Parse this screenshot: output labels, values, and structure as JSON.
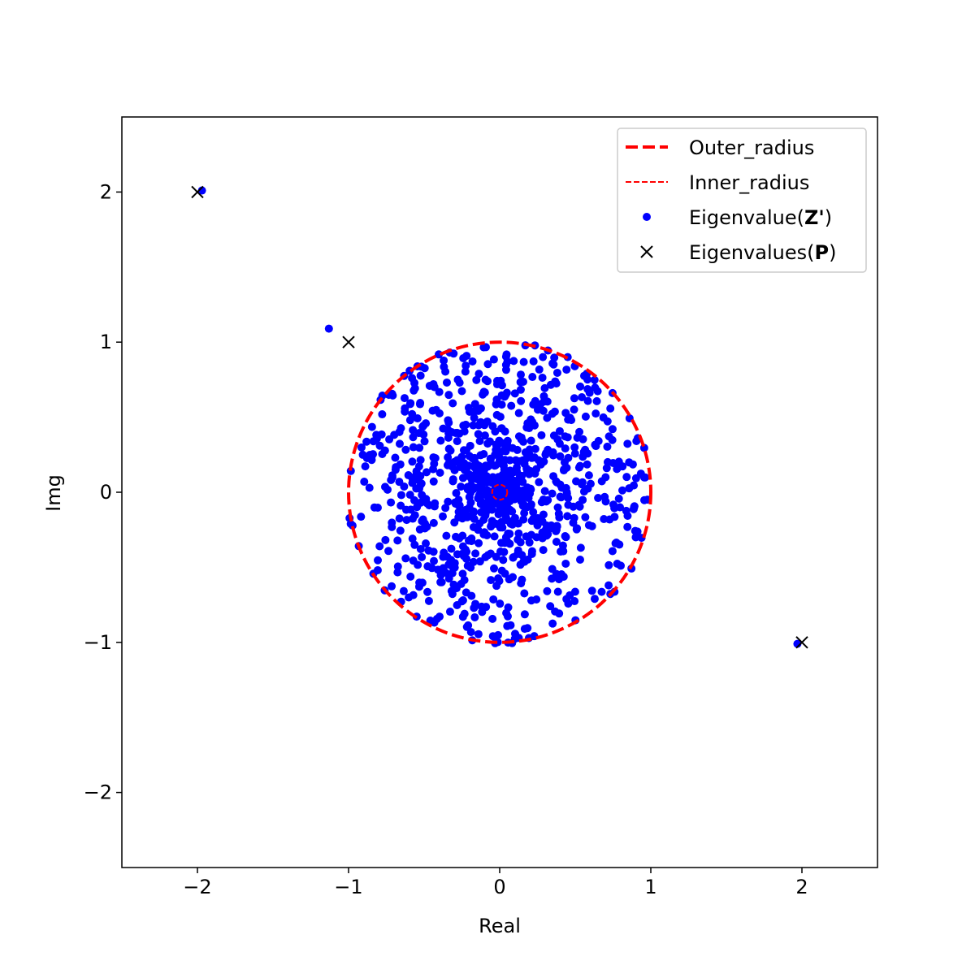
{
  "chart_data": {
    "type": "scatter",
    "title": "",
    "xlabel": "Real",
    "ylabel": "Img",
    "xlim": [
      -2.5,
      2.5
    ],
    "ylim": [
      -2.5,
      2.5
    ],
    "xticks": [
      -2,
      -1,
      0,
      1,
      2
    ],
    "yticks": [
      -2,
      -1,
      0,
      1,
      2
    ],
    "xtick_labels": [
      "−2",
      "−1",
      "0",
      "1",
      "2"
    ],
    "ytick_labels": [
      "−2",
      "−1",
      "0",
      "1",
      "2"
    ],
    "grid": false,
    "legend_position": "top-right",
    "outer_radius": 1.0,
    "inner_radius": 0.05,
    "colors": {
      "outer": "#ff0000",
      "inner": "#ff0000",
      "eig_z": "#0000ff",
      "eig_p": "#000000"
    },
    "legend": [
      {
        "label": "Outer_radius",
        "style": "thick-dashed"
      },
      {
        "label": "Inner_radius",
        "style": "thin-dashed"
      },
      {
        "label_main": "Eigenvalue(",
        "label_bold": "Z'",
        "label_end": ")",
        "style": "dot"
      },
      {
        "label_main": "Eigenvalues(",
        "label_bold": "P",
        "label_end": ")",
        "style": "cross"
      }
    ],
    "eigenvalues_P": [
      {
        "re": -2,
        "im": 2
      },
      {
        "re": -1,
        "im": 1
      },
      {
        "re": 2,
        "im": -1
      }
    ],
    "eigenvalues_Z_outliers": [
      {
        "re": -1.97,
        "im": 2.01
      },
      {
        "re": -1.13,
        "im": 1.09
      },
      {
        "re": 1.97,
        "im": -1.01
      }
    ],
    "eigenvalues_Z_bulk_note": "approximately 1000 eigenvalues distributed within the unit disk, denser toward the origin"
  }
}
